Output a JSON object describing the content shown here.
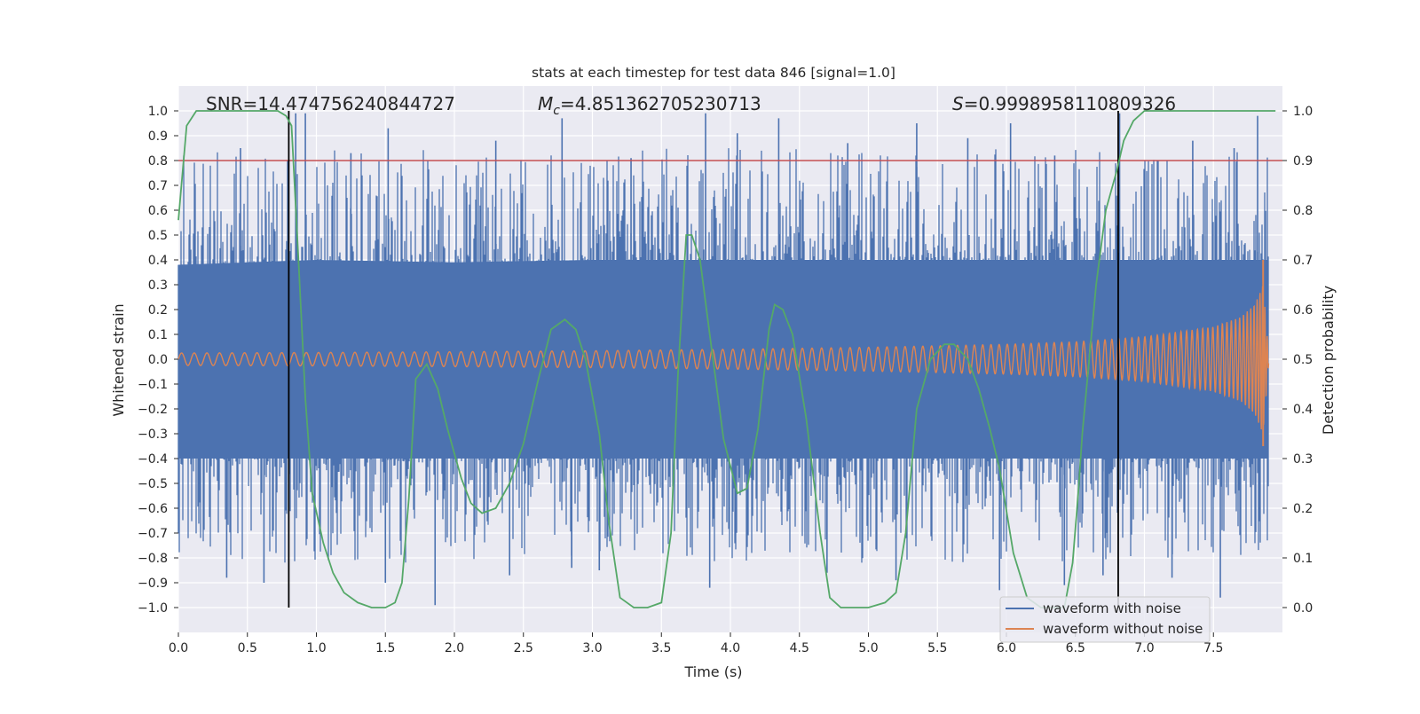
{
  "chart_data": {
    "type": "line",
    "title": "stats at each timestep for test data 846 [signal=1.0]",
    "xlabel": "Time (s)",
    "ylabel": "Whitened strain",
    "y2label": "Detection probability",
    "xlim": [
      0.0,
      8.0
    ],
    "ylim": [
      -1.1,
      1.1
    ],
    "y2lim": [
      -0.05,
      1.05
    ],
    "xticks": [
      "0.0",
      "0.5",
      "1.0",
      "1.5",
      "2.0",
      "2.5",
      "3.0",
      "3.5",
      "4.0",
      "4.5",
      "5.0",
      "5.5",
      "6.0",
      "6.5",
      "7.0",
      "7.5"
    ],
    "xtick_values": [
      0.0,
      0.5,
      1.0,
      1.5,
      2.0,
      2.5,
      3.0,
      3.5,
      4.0,
      4.5,
      5.0,
      5.5,
      6.0,
      6.5,
      7.0,
      7.5
    ],
    "yticks": [
      "1.0",
      "0.9",
      "0.8",
      "0.7",
      "0.6",
      "0.5",
      "0.4",
      "0.3",
      "0.2",
      "0.1",
      "0.0",
      "−0.1",
      "−0.2",
      "−0.3",
      "−0.4",
      "−0.5",
      "−0.6",
      "−0.7",
      "−0.8",
      "−0.9",
      "−1.0"
    ],
    "ytick_values": [
      1.0,
      0.9,
      0.8,
      0.7,
      0.6,
      0.5,
      0.4,
      0.3,
      0.2,
      0.1,
      0.0,
      -0.1,
      -0.2,
      -0.3,
      -0.4,
      -0.5,
      -0.6,
      -0.7,
      -0.8,
      -0.9,
      -1.0
    ],
    "y2ticks": [
      "1.0",
      "0.9",
      "0.8",
      "0.7",
      "0.6",
      "0.5",
      "0.4",
      "0.3",
      "0.2",
      "0.1",
      "0.0"
    ],
    "y2tick_values": [
      1.0,
      0.9,
      0.8,
      0.7,
      0.6,
      0.5,
      0.4,
      0.3,
      0.2,
      0.1,
      0.0
    ],
    "grid": true,
    "background": "#eaeaf2",
    "legend": {
      "placement": "lower-right",
      "entries": [
        {
          "label": "waveform with noise",
          "color": "#4c72b0"
        },
        {
          "label": "waveform without noise",
          "color": "#dd8452"
        }
      ]
    },
    "annotations": {
      "snr": "SNR=14.474756240844727",
      "mc_symbol": "M",
      "mc_sub": "c",
      "mc_value": "=4.851362705230713",
      "s_symbol": "S",
      "s_value": "=0.9998958110809326"
    },
    "noisy_waveform": {
      "name": "waveform with noise",
      "color": "#4c72b0",
      "band": {
        "t": [
          0.0,
          1.0,
          2.0,
          3.0,
          4.0,
          5.0,
          6.0,
          7.0,
          7.9
        ],
        "upper": [
          0.38,
          0.4,
          0.39,
          0.4,
          0.4,
          0.4,
          0.4,
          0.4,
          0.4
        ],
        "lower": [
          -0.4,
          -0.4,
          -0.4,
          -0.4,
          -0.4,
          -0.4,
          -0.4,
          -0.4,
          -0.4
        ]
      },
      "peaks": [
        [
          0.85,
          0.99
        ],
        [
          0.92,
          0.99
        ],
        [
          1.52,
          0.93
        ],
        [
          2.78,
          0.97
        ],
        [
          3.82,
          0.99
        ],
        [
          4.35,
          0.97
        ],
        [
          5.35,
          0.95
        ],
        [
          6.03,
          0.95
        ],
        [
          6.82,
          0.99
        ],
        [
          7.82,
          0.98
        ],
        [
          0.45,
          0.85
        ],
        [
          1.25,
          0.83
        ],
        [
          2.3,
          0.88
        ],
        [
          3.28,
          0.81
        ],
        [
          4.05,
          0.91
        ],
        [
          4.85,
          0.87
        ],
        [
          5.72,
          0.89
        ],
        [
          6.35,
          0.82
        ],
        [
          7.35,
          0.88
        ],
        [
          7.65,
          0.85
        ]
      ],
      "troughs": [
        [
          1.86,
          -0.99
        ],
        [
          1.5,
          -0.9
        ],
        [
          0.35,
          -0.88
        ],
        [
          3.85,
          -0.92
        ],
        [
          5.95,
          -0.93
        ],
        [
          6.42,
          -0.91
        ],
        [
          7.55,
          -0.96
        ],
        [
          2.4,
          -0.87
        ],
        [
          4.7,
          -0.86
        ],
        [
          5.2,
          -0.89
        ],
        [
          7.2,
          -0.88
        ],
        [
          0.62,
          -0.9
        ],
        [
          3.05,
          -0.85
        ],
        [
          2.85,
          -0.84
        ],
        [
          6.7,
          -0.87
        ]
      ]
    },
    "clean_waveform": {
      "name": "waveform without noise",
      "color": "#dd8452",
      "envelope": {
        "t": [
          0.0,
          1.0,
          2.0,
          3.0,
          4.0,
          5.0,
          6.0,
          6.5,
          7.0,
          7.5,
          7.7,
          7.8,
          7.86,
          7.9
        ],
        "amp": [
          0.025,
          0.027,
          0.03,
          0.034,
          0.04,
          0.048,
          0.06,
          0.07,
          0.09,
          0.13,
          0.17,
          0.22,
          0.3,
          0.02
        ]
      },
      "tail_peak": [
        7.86,
        0.4
      ]
    },
    "detection_probability": {
      "name": "Detection probability",
      "color": "#55a868",
      "axis": "right",
      "t": [
        0.0,
        0.06,
        0.13,
        0.25,
        0.5,
        0.72,
        0.78,
        0.82,
        0.87,
        0.92,
        0.97,
        1.05,
        1.12,
        1.2,
        1.3,
        1.4,
        1.5,
        1.57,
        1.62,
        1.67,
        1.72,
        1.8,
        1.88,
        1.95,
        2.05,
        2.12,
        2.2,
        2.3,
        2.4,
        2.5,
        2.6,
        2.7,
        2.8,
        2.88,
        2.95,
        3.05,
        3.12,
        3.2,
        3.3,
        3.4,
        3.5,
        3.57,
        3.62,
        3.68,
        3.72,
        3.78,
        3.85,
        3.95,
        4.05,
        4.12,
        4.2,
        4.28,
        4.32,
        4.38,
        4.45,
        4.55,
        4.65,
        4.72,
        4.8,
        4.9,
        5.0,
        5.12,
        5.2,
        5.27,
        5.35,
        5.45,
        5.55,
        5.62,
        5.72,
        5.8,
        5.88,
        5.95,
        6.05,
        6.15,
        6.25,
        6.35,
        6.42,
        6.48,
        6.52,
        6.55,
        6.65,
        6.72,
        6.8,
        6.85,
        6.92,
        7.0,
        7.2,
        7.5,
        7.8,
        7.95
      ],
      "p": [
        0.78,
        0.97,
        1.0,
        1.0,
        1.0,
        1.0,
        0.99,
        0.97,
        0.7,
        0.42,
        0.23,
        0.13,
        0.07,
        0.03,
        0.01,
        0.0,
        0.0,
        0.01,
        0.05,
        0.22,
        0.46,
        0.49,
        0.44,
        0.36,
        0.26,
        0.21,
        0.19,
        0.2,
        0.25,
        0.33,
        0.45,
        0.56,
        0.58,
        0.56,
        0.5,
        0.35,
        0.17,
        0.02,
        0.0,
        0.0,
        0.01,
        0.15,
        0.47,
        0.75,
        0.75,
        0.7,
        0.55,
        0.34,
        0.23,
        0.24,
        0.36,
        0.56,
        0.61,
        0.6,
        0.55,
        0.38,
        0.15,
        0.02,
        0.0,
        0.0,
        0.0,
        0.01,
        0.03,
        0.15,
        0.4,
        0.5,
        0.53,
        0.53,
        0.5,
        0.44,
        0.36,
        0.28,
        0.11,
        0.02,
        0.0,
        0.0,
        0.0,
        0.09,
        0.23,
        0.35,
        0.65,
        0.8,
        0.88,
        0.94,
        0.98,
        1.0,
        1.0,
        1.0,
        1.0,
        1.0
      ]
    },
    "reference_lines": {
      "threshold": {
        "y2": 0.9,
        "color": "#c44e52"
      },
      "vertical": [
        {
          "x": 0.8,
          "y_from": -1.0,
          "y_to": 1.0,
          "color": "#000000"
        },
        {
          "x": 6.81,
          "y_from": -1.0,
          "y_to": 1.0,
          "color": "#000000"
        }
      ]
    }
  }
}
